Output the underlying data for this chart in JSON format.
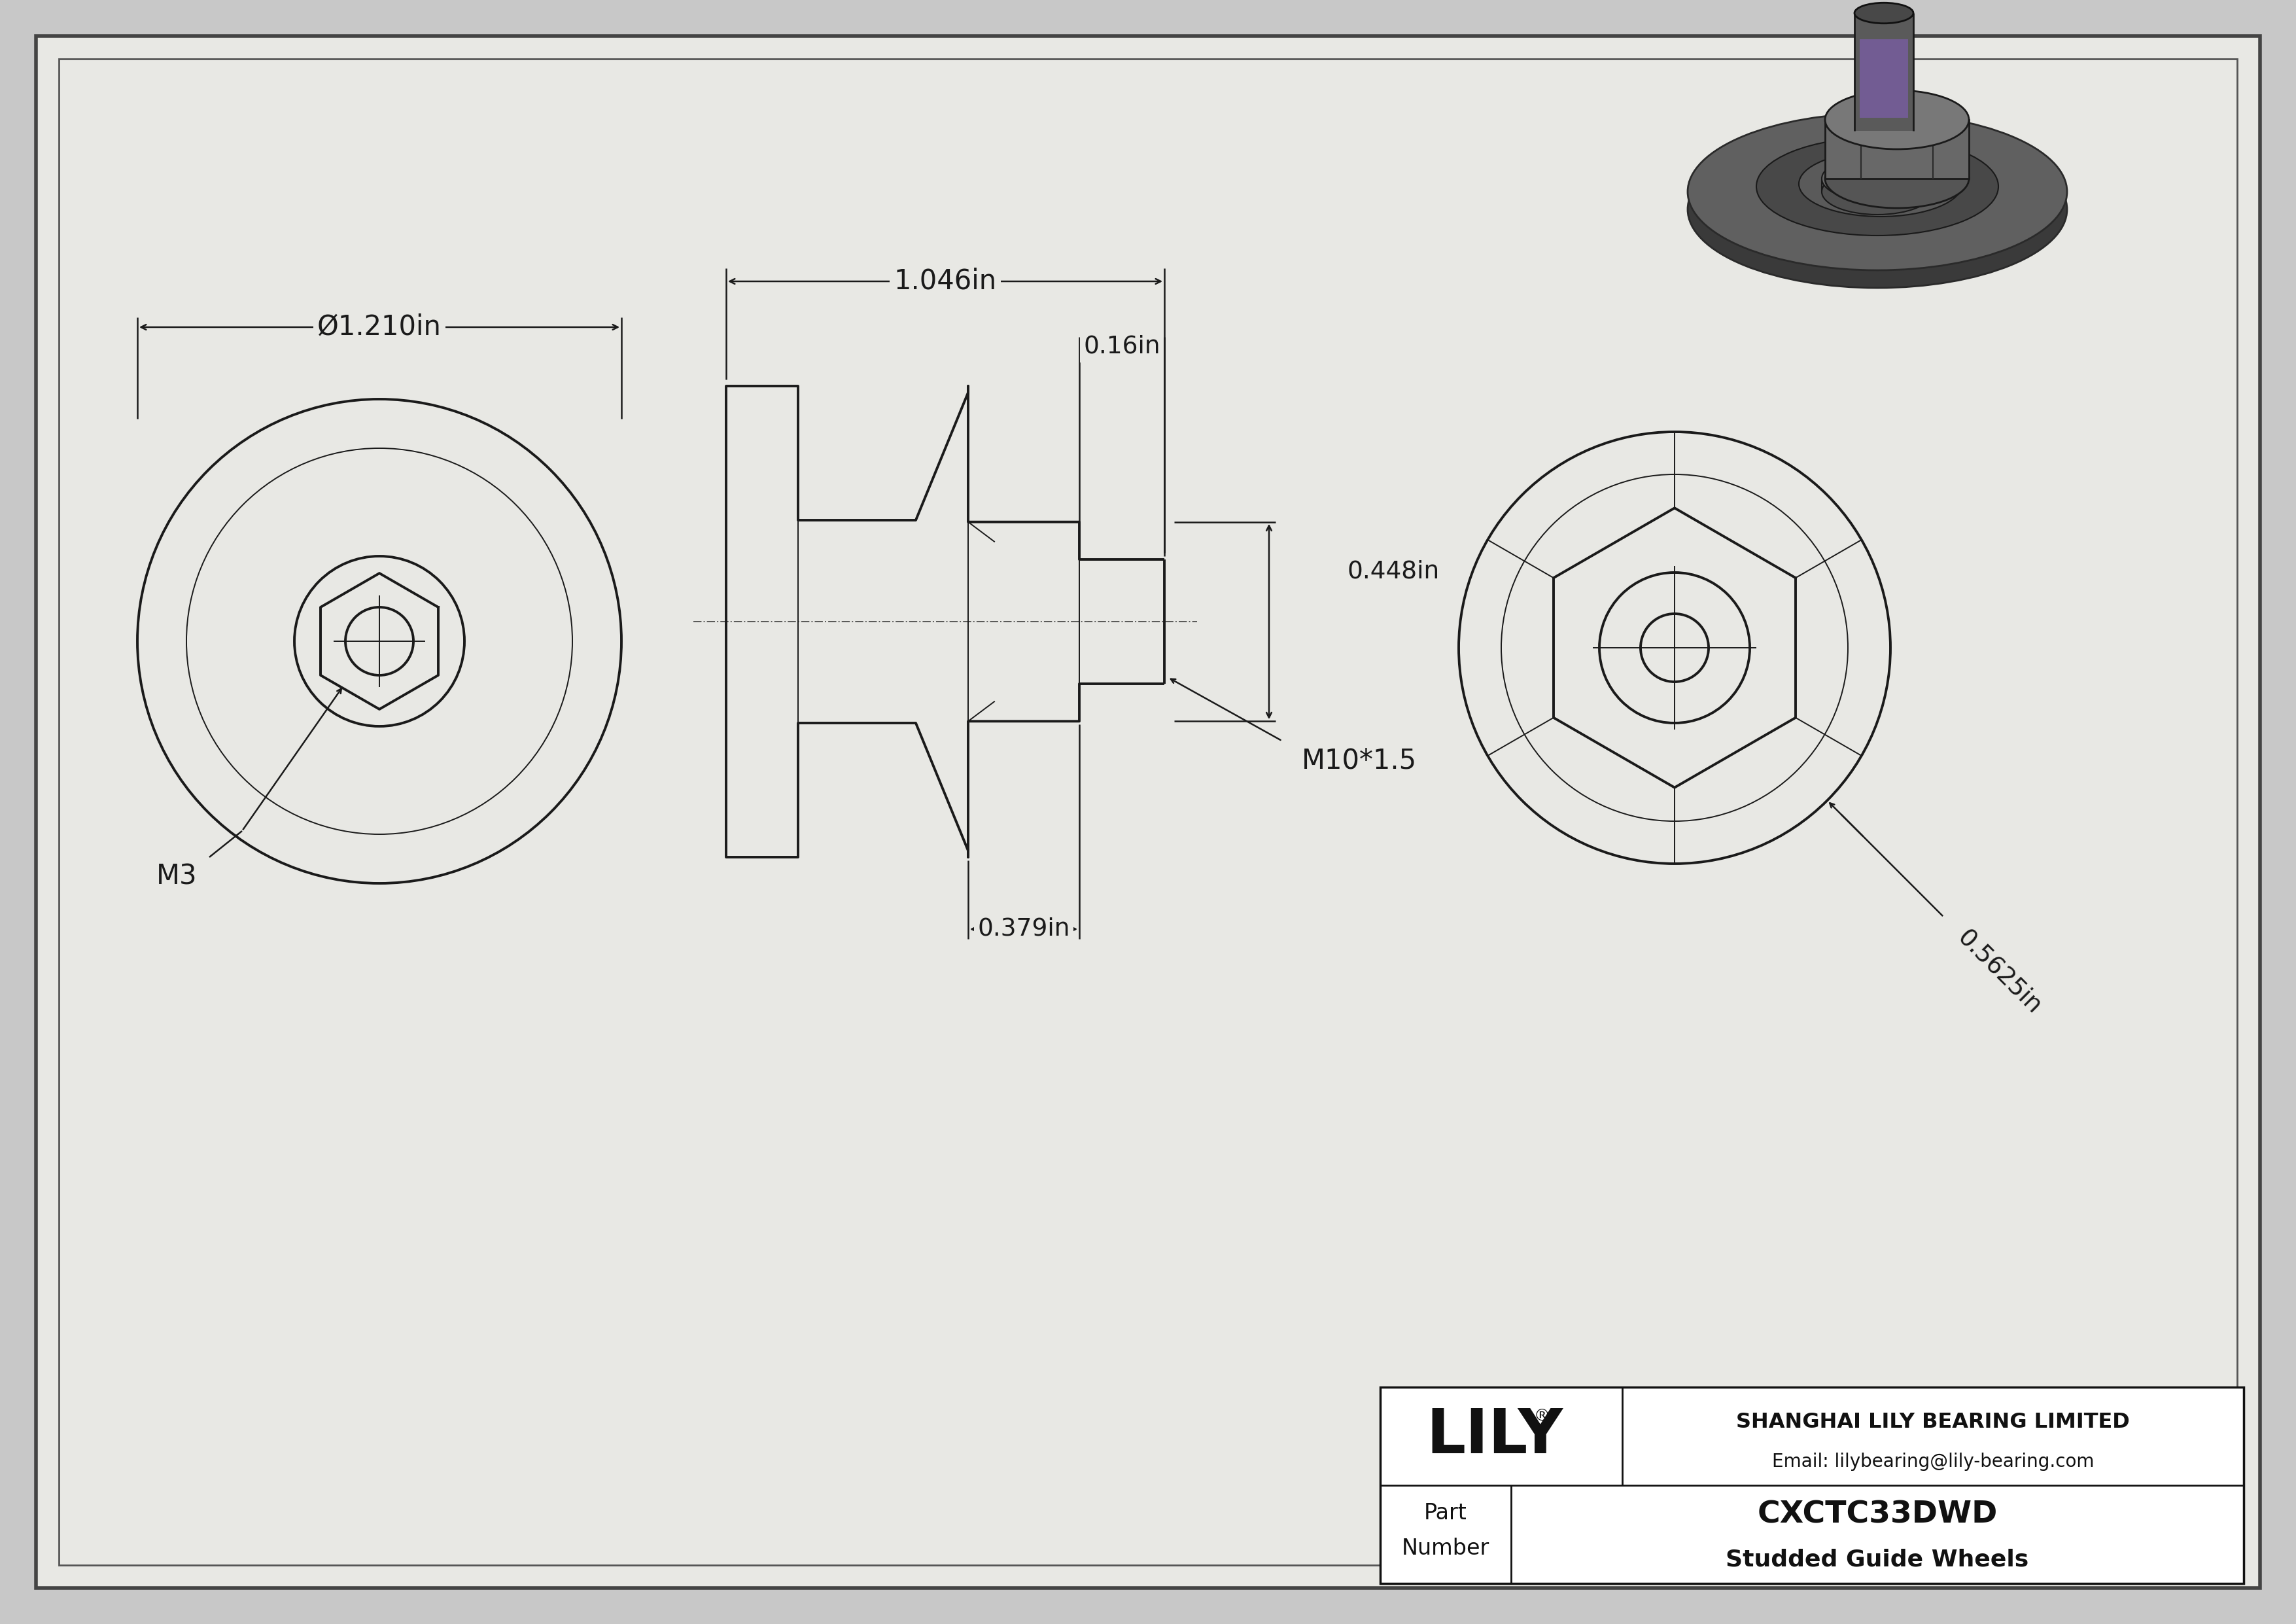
{
  "bg_color": "#c8c8c8",
  "paper_color": "#e8e8e4",
  "line_color": "#1a1a1a",
  "dim_color": "#1a1a1a",
  "part_number": "CXCTC33DWD",
  "part_type": "Studded Guide Wheels",
  "company": "SHANGHAI LILY BEARING LIMITED",
  "email": "Email: lilybearing@lily-bearing.com",
  "lily_text": "LILY",
  "dim_diameter": "Ø1.210in",
  "dim_length": "1.046in",
  "dim_stud_len": "0.379in",
  "dim_hex_width": "0.448in",
  "dim_tip": "0.16in",
  "dim_side": "0.5625in",
  "label_m3": "M3",
  "label_thread": "M10*1.5",
  "lw_main": 2.8,
  "lw_dim": 1.8,
  "lw_thin": 1.4
}
